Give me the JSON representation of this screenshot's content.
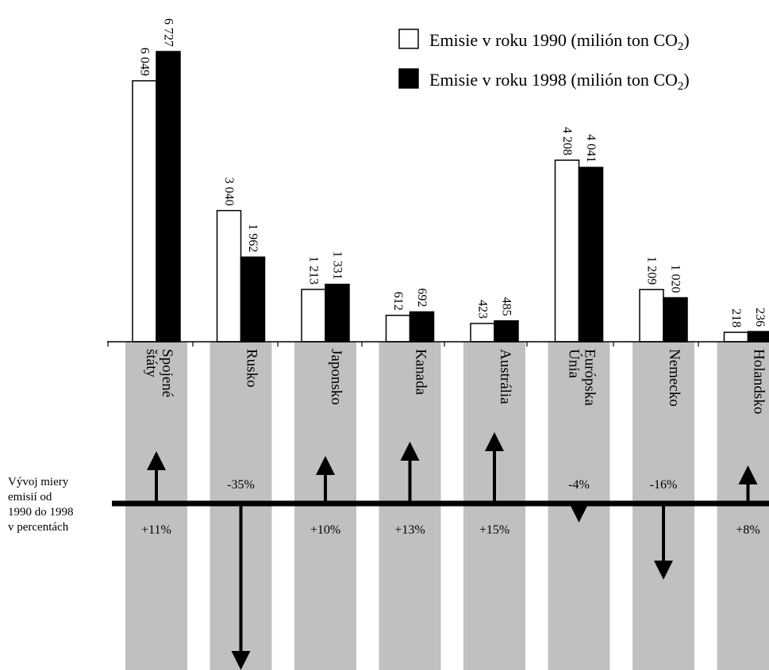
{
  "chart_data": {
    "type": "bar",
    "categories": [
      "Spojené štáty",
      "Rusko",
      "Japonsko",
      "Kanada",
      "Austrália",
      "Európska Únia",
      "Nemecko",
      "Holandsko"
    ],
    "category_lines": [
      [
        "Spojené",
        "štáty"
      ],
      [
        "Rusko"
      ],
      [
        "Japonsko"
      ],
      [
        "Kanada"
      ],
      [
        "Austrália"
      ],
      [
        "Európska",
        "Únia"
      ],
      [
        "Nemecko"
      ],
      [
        "Holandsko"
      ]
    ],
    "series": [
      {
        "name": "Emisie v roku 1990 (milión ton CO",
        "name_sub": "2",
        "name_close": ")",
        "values": [
          6049,
          3040,
          1213,
          612,
          423,
          4208,
          1209,
          218
        ],
        "labels": [
          "6 049",
          "3 040",
          "1 213",
          "612",
          "423",
          "4 208",
          "1 209",
          "218"
        ],
        "fill": "#ffffff"
      },
      {
        "name": "Emisie v roku 1998 (milión ton CO",
        "name_sub": "2",
        "name_close": ")",
        "values": [
          6727,
          1962,
          1331,
          692,
          485,
          4041,
          1020,
          236
        ],
        "labels": [
          "6 727",
          "1 962",
          "1 331",
          "692",
          "485",
          "4 041",
          "1 020",
          "236"
        ],
        "fill": "#000000"
      }
    ],
    "change": {
      "title_lines": [
        "Vývoj miery",
        "emisií  od",
        "1990 do 1998",
        "v percentách"
      ],
      "values": [
        11,
        -35,
        10,
        13,
        15,
        -4,
        -16,
        8
      ],
      "labels": [
        "+11%",
        "-35%",
        "+10%",
        "+13%",
        "+15%",
        "-4%",
        "-16%",
        "+8%"
      ]
    },
    "colors": {
      "band": "#c0c0c0",
      "ink": "#000000"
    }
  }
}
